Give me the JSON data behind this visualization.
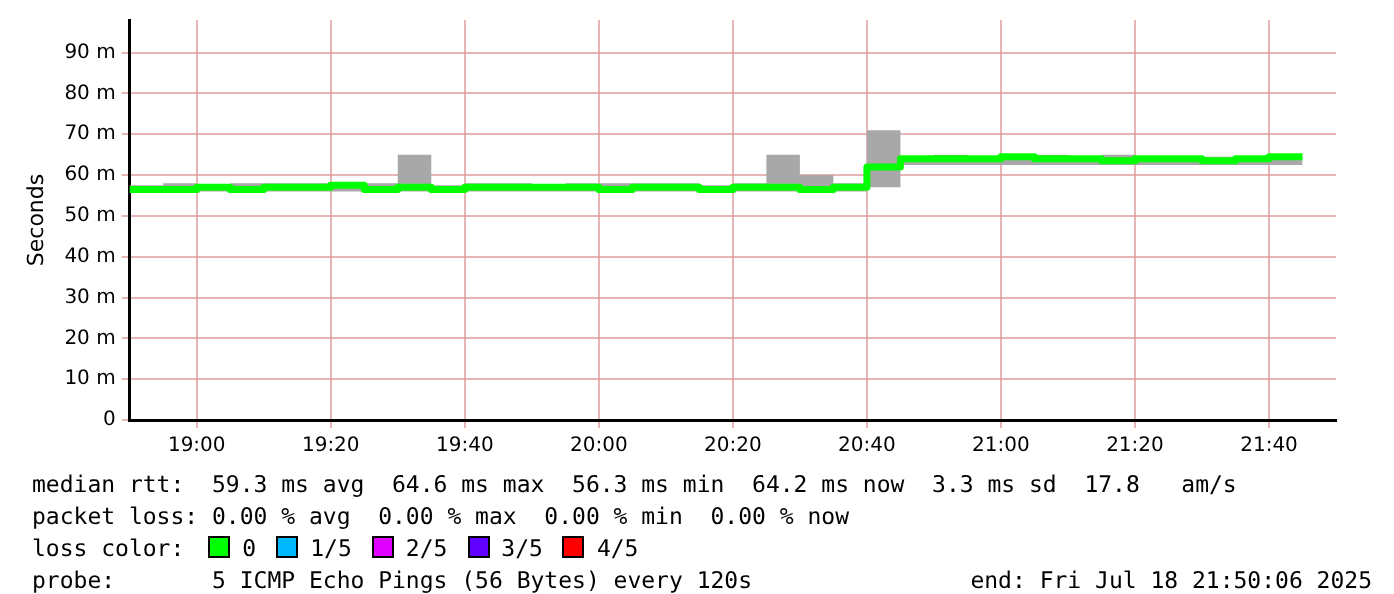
{
  "chart_data": {
    "type": "step",
    "ylabel": "Seconds",
    "xlim": [
      18.8333,
      21.8333
    ],
    "xticks": [
      {
        "value": 19,
        "label": "19:00"
      },
      {
        "value": 19.3333,
        "label": "19:20"
      },
      {
        "value": 19.6667,
        "label": "19:40"
      },
      {
        "value": 20,
        "label": "20:00"
      },
      {
        "value": 20.3333,
        "label": "20:20"
      },
      {
        "value": 20.6667,
        "label": "20:40"
      },
      {
        "value": 21,
        "label": "21:00"
      },
      {
        "value": 21.3333,
        "label": "21:20"
      },
      {
        "value": 21.6667,
        "label": "21:40"
      }
    ],
    "ylim": [
      0,
      98
    ],
    "yticks": [
      0,
      {
        "value": 10,
        "label": "10 m"
      },
      {
        "value": 20,
        "label": "20 m"
      },
      {
        "value": 30,
        "label": "30 m"
      },
      {
        "value": 40,
        "label": "40 m"
      },
      {
        "value": 50,
        "label": "50 m"
      },
      {
        "value": 60,
        "label": "60 m"
      },
      {
        "value": 70,
        "label": "70 m"
      },
      {
        "value": 80,
        "label": "80 m"
      },
      {
        "value": 90,
        "label": "90 m"
      }
    ],
    "x": [
      18.8333,
      18.9167,
      19,
      19.0833,
      19.1667,
      19.25,
      19.3333,
      19.4167,
      19.5,
      19.5833,
      19.6667,
      19.75,
      19.8333,
      19.9167,
      20,
      20.0833,
      20.1667,
      20.25,
      20.3333,
      20.4167,
      20.5,
      20.5833,
      20.6667,
      20.75,
      20.8333,
      20.9167,
      21,
      21.0833,
      21.1667,
      21.25,
      21.3333,
      21.4167,
      21.5,
      21.5833,
      21.6667,
      21.75
    ],
    "series": [
      {
        "color": "#00ff00",
        "values": [
          57,
          56.5,
          56.5,
          57,
          56.5,
          57,
          57,
          57.5,
          56.5,
          57,
          56.5,
          57,
          57,
          57,
          57,
          56.5,
          57,
          57,
          56.5,
          57,
          57,
          56.5,
          57,
          62,
          64,
          64,
          64,
          64.5,
          64,
          64,
          63.5,
          64,
          64,
          63.5,
          64,
          64.5
        ],
        "lower": [
          56,
          56,
          56,
          56,
          56,
          56,
          56,
          56,
          56,
          56,
          56,
          56,
          56,
          56,
          56,
          56,
          56,
          56,
          56,
          56,
          56,
          56,
          56,
          57,
          62.5,
          62.5,
          62.5,
          62.5,
          62.5,
          62.5,
          62.5,
          62.5,
          62.5,
          62.5,
          62.5,
          62.5
        ],
        "upper": [
          60,
          57.5,
          58,
          57.5,
          58,
          58,
          58,
          57.5,
          58,
          65,
          57.5,
          58,
          58,
          57.5,
          58,
          58,
          58,
          58,
          57.5,
          58,
          65,
          60,
          58,
          71,
          64.5,
          65,
          64.5,
          65,
          65,
          64.5,
          65,
          64.5,
          64.5,
          64.5,
          64.5,
          65
        ]
      }
    ],
    "grid": true,
    "legend": false,
    "marker": "none",
    "line_style": "solid",
    "annotations": [
      "median rtt:  59.3 ms avg  64.6 ms max  56.3 ms min  64.2 ms now  3.3 ms sd  17.8   am/s",
      "packet loss: 0.00 % avg  0.00 % max  0.00 % min  0.00 % now",
      "loss color:",
      "0",
      "1/5",
      "2/5",
      "3/5",
      "4/5",
      "probe:       5 ICMP Echo Pings (56 Bytes) every 120s",
      "end: Fri Jul 18 21:50:06 2025"
    ]
  }
}
